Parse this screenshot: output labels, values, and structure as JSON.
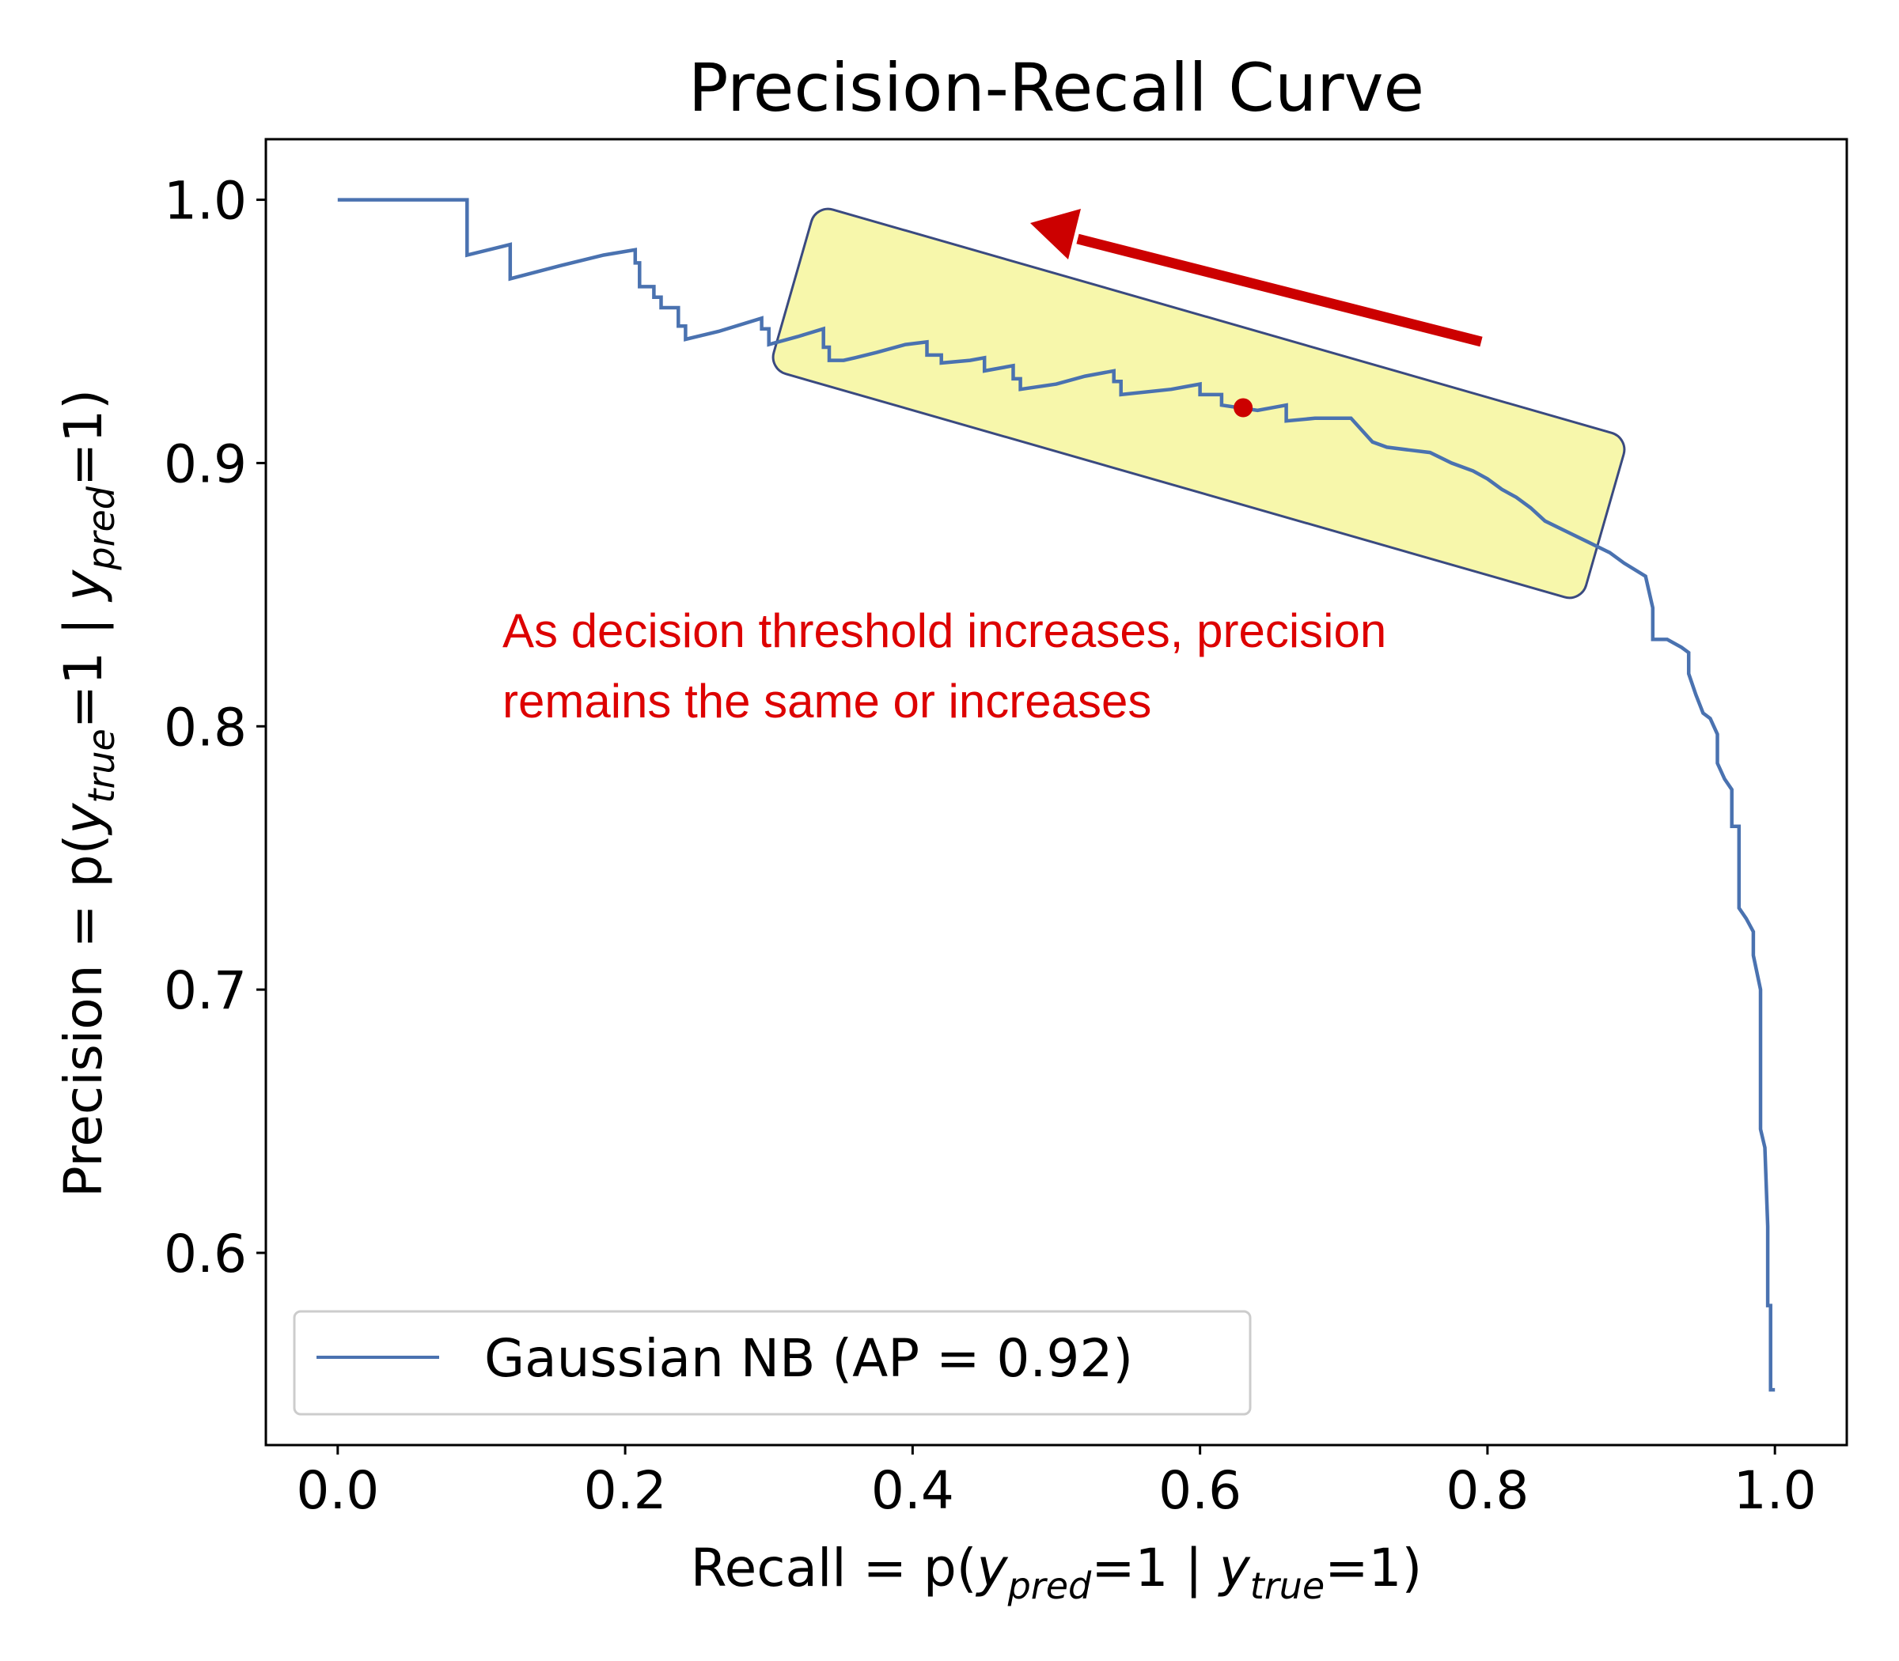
{
  "chart_data": {
    "type": "line",
    "title": "Precision-Recall Curve",
    "xlabel": {
      "prefix": "Recall = p(",
      "var1": "y",
      "sub1": "pred",
      "mid": "=1 | ",
      "var2": "y",
      "sub2": "true",
      "suffix": "=1)"
    },
    "ylabel": {
      "prefix": "Precision = p(",
      "var1": "y",
      "sub1": "true",
      "mid": "=1 | ",
      "var2": "y",
      "sub2": "pred",
      "suffix": "=1)"
    },
    "xlim": [
      -0.05,
      1.05
    ],
    "ylim": [
      0.527,
      1.023
    ],
    "xticks": [
      0.0,
      0.2,
      0.4,
      0.6,
      0.8,
      1.0
    ],
    "xtick_labels": [
      "0.0",
      "0.2",
      "0.4",
      "0.6",
      "0.8",
      "1.0"
    ],
    "yticks": [
      0.6,
      0.7,
      0.8,
      0.9,
      1.0
    ],
    "ytick_labels": [
      "0.6",
      "0.7",
      "0.8",
      "0.9",
      "1.0"
    ],
    "grid": false,
    "legend_position": "lower-left",
    "series": [
      {
        "name": "Gaussian NB (AP = 0.92)",
        "color": "#4a72b0",
        "points": [
          [
            0.0,
            1.0
          ],
          [
            0.09,
            1.0
          ],
          [
            0.09,
            0.979
          ],
          [
            0.12,
            0.983
          ],
          [
            0.12,
            0.97
          ],
          [
            0.155,
            0.975
          ],
          [
            0.185,
            0.979
          ],
          [
            0.207,
            0.981
          ],
          [
            0.207,
            0.976
          ],
          [
            0.21,
            0.976
          ],
          [
            0.21,
            0.967
          ],
          [
            0.22,
            0.967
          ],
          [
            0.22,
            0.963
          ],
          [
            0.225,
            0.963
          ],
          [
            0.225,
            0.959
          ],
          [
            0.237,
            0.959
          ],
          [
            0.237,
            0.952
          ],
          [
            0.242,
            0.952
          ],
          [
            0.242,
            0.947
          ],
          [
            0.265,
            0.95
          ],
          [
            0.295,
            0.955
          ],
          [
            0.295,
            0.951
          ],
          [
            0.3,
            0.951
          ],
          [
            0.3,
            0.945
          ],
          [
            0.32,
            0.948
          ],
          [
            0.338,
            0.951
          ],
          [
            0.338,
            0.944
          ],
          [
            0.342,
            0.944
          ],
          [
            0.342,
            0.939
          ],
          [
            0.352,
            0.939
          ],
          [
            0.36,
            0.94
          ],
          [
            0.375,
            0.942
          ],
          [
            0.395,
            0.945
          ],
          [
            0.41,
            0.946
          ],
          [
            0.41,
            0.941
          ],
          [
            0.42,
            0.941
          ],
          [
            0.42,
            0.938
          ],
          [
            0.44,
            0.939
          ],
          [
            0.45,
            0.94
          ],
          [
            0.45,
            0.935
          ],
          [
            0.47,
            0.937
          ],
          [
            0.47,
            0.932
          ],
          [
            0.475,
            0.932
          ],
          [
            0.475,
            0.928
          ],
          [
            0.5,
            0.93
          ],
          [
            0.52,
            0.933
          ],
          [
            0.54,
            0.935
          ],
          [
            0.54,
            0.931
          ],
          [
            0.545,
            0.931
          ],
          [
            0.545,
            0.926
          ],
          [
            0.58,
            0.928
          ],
          [
            0.59,
            0.929
          ],
          [
            0.6,
            0.93
          ],
          [
            0.6,
            0.926
          ],
          [
            0.615,
            0.926
          ],
          [
            0.615,
            0.922
          ],
          [
            0.64,
            0.92
          ],
          [
            0.66,
            0.922
          ],
          [
            0.66,
            0.916
          ],
          [
            0.68,
            0.917
          ],
          [
            0.705,
            0.917
          ],
          [
            0.715,
            0.911
          ],
          [
            0.72,
            0.908
          ],
          [
            0.73,
            0.906
          ],
          [
            0.745,
            0.905
          ],
          [
            0.76,
            0.904
          ],
          [
            0.775,
            0.9
          ],
          [
            0.79,
            0.897
          ],
          [
            0.8,
            0.894
          ],
          [
            0.81,
            0.89
          ],
          [
            0.82,
            0.887
          ],
          [
            0.83,
            0.883
          ],
          [
            0.84,
            0.878
          ],
          [
            0.855,
            0.874
          ],
          [
            0.87,
            0.87
          ],
          [
            0.885,
            0.866
          ],
          [
            0.895,
            0.862
          ],
          [
            0.91,
            0.857
          ],
          [
            0.915,
            0.845
          ],
          [
            0.915,
            0.833
          ],
          [
            0.925,
            0.833
          ],
          [
            0.935,
            0.83
          ],
          [
            0.94,
            0.828
          ],
          [
            0.94,
            0.82
          ],
          [
            0.945,
            0.812
          ],
          [
            0.95,
            0.805
          ],
          [
            0.955,
            0.803
          ],
          [
            0.96,
            0.797
          ],
          [
            0.96,
            0.786
          ],
          [
            0.965,
            0.78
          ],
          [
            0.97,
            0.776
          ],
          [
            0.97,
            0.762
          ],
          [
            0.975,
            0.762
          ],
          [
            0.975,
            0.745
          ],
          [
            0.975,
            0.731
          ],
          [
            0.98,
            0.727
          ],
          [
            0.985,
            0.722
          ],
          [
            0.985,
            0.713
          ],
          [
            0.99,
            0.7
          ],
          [
            0.99,
            0.647
          ],
          [
            0.993,
            0.64
          ],
          [
            0.995,
            0.61
          ],
          [
            0.995,
            0.58
          ],
          [
            0.997,
            0.58
          ],
          [
            0.997,
            0.548
          ],
          [
            1.0,
            0.548
          ]
        ]
      }
    ],
    "annotation": {
      "lines": [
        "As decision threshold increases, precision",
        "remains the same or increases"
      ],
      "color": "#dd0000",
      "highlight_color": "#f7f7a6",
      "highlight_border": "#3a4a80",
      "arrow_color": "#cc0000",
      "marker": {
        "x": 0.63,
        "y": 0.921,
        "color": "#cc0000"
      }
    }
  }
}
